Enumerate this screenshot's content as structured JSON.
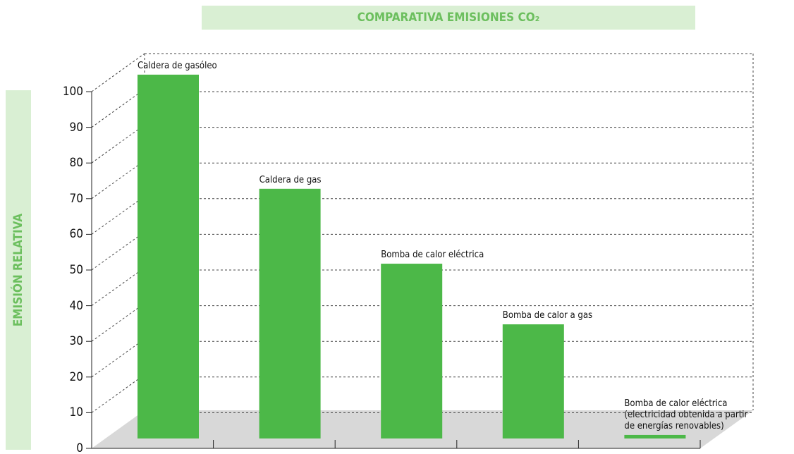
{
  "chart_data": {
    "type": "bar",
    "title": "COMPARATIVA EMISIONES CO₂",
    "y_label": "EMISIÓN RELATIVA",
    "categories": [
      "Caldera de gasóleo",
      "Caldera de gas",
      "Bomba de calor eléctrica",
      "Bomba de calor a gas",
      "Bomba de calor eléctrica\n(electricidad obtenida a partir\nde energías renovables)"
    ],
    "values": [
      102,
      70,
      49,
      32,
      1
    ],
    "color": "#4cb848",
    "ylim": [
      0,
      100
    ],
    "yticks": [
      0,
      10,
      20,
      30,
      40,
      50,
      60,
      70,
      80,
      90,
      100
    ],
    "grid": true
  }
}
